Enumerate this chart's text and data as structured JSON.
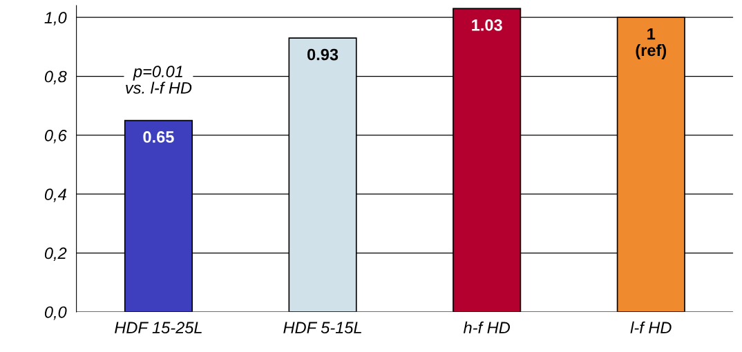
{
  "chart_data": {
    "type": "bar",
    "categories": [
      "HDF 15-25L",
      "HDF 5-15L",
      "h-f HD",
      "l-f HD"
    ],
    "values": [
      0.65,
      0.93,
      1.03,
      1
    ],
    "colors": [
      "#3d3fbf",
      "#d0e1ea",
      "#b4002f",
      "#f08a2e"
    ],
    "value_labels": [
      "0.65",
      "0.93",
      "1.03",
      "1\n(ref)"
    ],
    "ylim": [
      0,
      1.04
    ],
    "yticks": [
      {
        "value": 0,
        "label": "0,0"
      },
      {
        "value": 0.2,
        "label": "0,2"
      },
      {
        "value": 0.4,
        "label": "0,4"
      },
      {
        "value": 0.6,
        "label": "0,6"
      },
      {
        "value": 0.8,
        "label": "0,8"
      },
      {
        "value": 1.0,
        "label": "1,0"
      }
    ],
    "grid": "y",
    "legend": false,
    "annotations": [
      "p=0.01\nvs. l-f HD"
    ]
  }
}
